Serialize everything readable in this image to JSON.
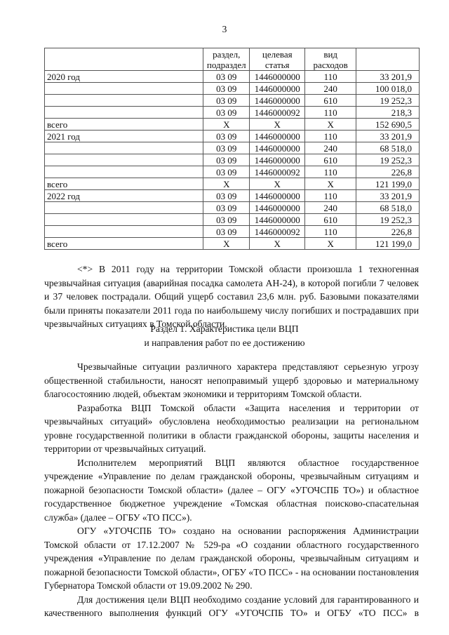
{
  "page_number": "3",
  "table": {
    "header": [
      "",
      "раздел, подраздел",
      "целевая статья",
      "вид расходов",
      ""
    ],
    "rows": [
      [
        "2020 год",
        "03 09",
        "1446000000",
        "110",
        "33 201,9"
      ],
      [
        "",
        "03 09",
        "1446000000",
        "240",
        "100 018,0"
      ],
      [
        "",
        "03 09",
        "1446000000",
        "610",
        "19 252,3"
      ],
      [
        "",
        "03 09",
        "1446000092",
        "110",
        "218,3"
      ],
      [
        "всего",
        "X",
        "X",
        "X",
        "152 690,5"
      ],
      [
        "2021 год",
        "03 09",
        "1446000000",
        "110",
        "33 201,9"
      ],
      [
        "",
        "03 09",
        "1446000000",
        "240",
        "68 518,0"
      ],
      [
        "",
        "03 09",
        "1446000000",
        "610",
        "19 252,3"
      ],
      [
        "",
        "03 09",
        "1446000092",
        "110",
        "226,8"
      ],
      [
        "всего",
        "X",
        "X",
        "X",
        "121 199,0"
      ],
      [
        "2022 год",
        "03 09",
        "1446000000",
        "110",
        "33 201,9"
      ],
      [
        "",
        "03 09",
        "1446000000",
        "240",
        "68 518,0"
      ],
      [
        "",
        "03 09",
        "1446000000",
        "610",
        "19 252,3"
      ],
      [
        "",
        "03 09",
        "1446000092",
        "110",
        "226,8"
      ],
      [
        "всего",
        "X",
        "X",
        "X",
        "121 199,0"
      ]
    ]
  },
  "footnote": "<*> В 2011 году на территории Томской области произошла 1 техногенная чрезвычайная ситуация (аварийная посадка самолета АН-24), в которой погибли 7 человек и 37 человек пострадали. Общий ущерб составил 23,6 млн. руб. Базовыми показателями были приняты показатели 2011 года по наибольшему числу погибших и пострадавших при чрезвычайных ситуациях в Томской области.",
  "section_heading": [
    "Раздел 1. Характеристика цели ВЦП",
    "и направления работ по ее достижению"
  ],
  "paragraphs": [
    "Чрезвычайные ситуации различного характера представляют серьезную угрозу общественной стабильности, наносят непоправимый ущерб здоровью и материальному благосостоянию людей, объектам экономики и территориям Томской области.",
    "Разработка ВЦП Томской области «Защита населения и территории от чрезвычайных ситуаций» обусловлена необходимостью реализации на региональном уровне государственной политики в области гражданской обороны, защиты населения и территории от чрезвычайных ситуаций.",
    "Исполнителем мероприятий ВЦП являются областное государственное учреждение «Управление по делам гражданской обороны, чрезвычайным ситуациям и пожарной безопасности Томской области» (далее – ОГУ «УГОЧСПБ ТО») и областное государственное бюджетное учреждение «Томская областная поисково-спасательная служба» (далее – ОГБУ «ТО ПСС»).",
    "ОГУ «УГОЧСПБ ТО» создано на основании распоряжения Администрации Томской области от 17.12.2007 № 529-ра «О создании областного государственного учреждения «Управление по делам гражданской обороны, чрезвычайным ситуациям и пожарной безопасности Томской области», ОГБУ «ТО ПСС» - на основании постановления Губернатора Томской области от 19.09.2002 № 290.",
    "Для достижения цели ВЦП необходимо создание условий для гарантированного и качественного выполнения функций ОГУ «УГОЧСПБ ТО» и ОГБУ «ТО ПСС» в"
  ]
}
